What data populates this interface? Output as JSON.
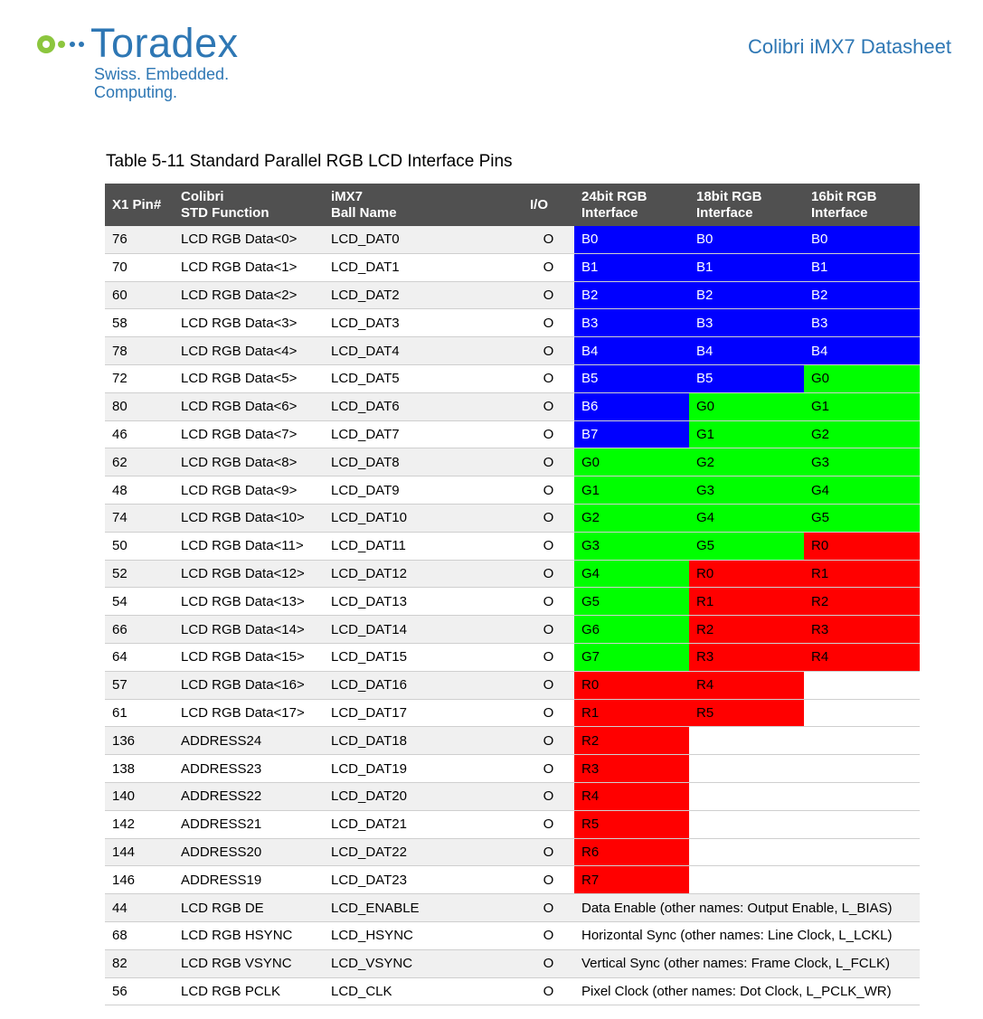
{
  "header": {
    "logo_text": "Toradex",
    "logo_tagline": "Swiss. Embedded. Computing.",
    "doc_title": "Colibri iMX7 Datasheet",
    "brand_color": "#2e77b4",
    "logo_dot_color": "#8cc63e"
  },
  "table": {
    "caption": "Table 5-11 Standard Parallel RGB LCD Interface Pins",
    "columns": [
      [
        "X1 Pin#"
      ],
      [
        "Colibri",
        "STD Function"
      ],
      [
        "iMX7",
        "Ball Name"
      ],
      [
        "I/O"
      ],
      [
        "24bit RGB",
        "Interface"
      ],
      [
        "18bit RGB",
        "Interface"
      ],
      [
        "16bit RGB",
        "Interface"
      ]
    ],
    "color_key": {
      "B": "#0000ff",
      "G": "#00ff00",
      "R": "#ff0000"
    },
    "rows": [
      {
        "pin": "76",
        "func": "LCD RGB Data<0>",
        "ball": "LCD_DAT0",
        "io": "O",
        "rgb24": "B0",
        "rgb18": "B0",
        "rgb16": "B0"
      },
      {
        "pin": "70",
        "func": "LCD RGB Data<1>",
        "ball": "LCD_DAT1",
        "io": "O",
        "rgb24": "B1",
        "rgb18": "B1",
        "rgb16": "B1"
      },
      {
        "pin": "60",
        "func": "LCD RGB Data<2>",
        "ball": "LCD_DAT2",
        "io": "O",
        "rgb24": "B2",
        "rgb18": "B2",
        "rgb16": "B2"
      },
      {
        "pin": "58",
        "func": "LCD RGB Data<3>",
        "ball": "LCD_DAT3",
        "io": "O",
        "rgb24": "B3",
        "rgb18": "B3",
        "rgb16": "B3"
      },
      {
        "pin": "78",
        "func": "LCD RGB Data<4>",
        "ball": "LCD_DAT4",
        "io": "O",
        "rgb24": "B4",
        "rgb18": "B4",
        "rgb16": "B4"
      },
      {
        "pin": "72",
        "func": "LCD RGB Data<5>",
        "ball": "LCD_DAT5",
        "io": "O",
        "rgb24": "B5",
        "rgb18": "B5",
        "rgb16": "G0"
      },
      {
        "pin": "80",
        "func": "LCD RGB Data<6>",
        "ball": "LCD_DAT6",
        "io": "O",
        "rgb24": "B6",
        "rgb18": "G0",
        "rgb16": "G1"
      },
      {
        "pin": "46",
        "func": "LCD RGB Data<7>",
        "ball": "LCD_DAT7",
        "io": "O",
        "rgb24": "B7",
        "rgb18": "G1",
        "rgb16": "G2"
      },
      {
        "pin": "62",
        "func": "LCD RGB Data<8>",
        "ball": "LCD_DAT8",
        "io": "O",
        "rgb24": "G0",
        "rgb18": "G2",
        "rgb16": "G3"
      },
      {
        "pin": "48",
        "func": "LCD RGB Data<9>",
        "ball": "LCD_DAT9",
        "io": "O",
        "rgb24": "G1",
        "rgb18": "G3",
        "rgb16": "G4"
      },
      {
        "pin": "74",
        "func": "LCD RGB Data<10>",
        "ball": "LCD_DAT10",
        "io": "O",
        "rgb24": "G2",
        "rgb18": "G4",
        "rgb16": "G5"
      },
      {
        "pin": "50",
        "func": "LCD RGB Data<11>",
        "ball": "LCD_DAT11",
        "io": "O",
        "rgb24": "G3",
        "rgb18": "G5",
        "rgb16": "R0"
      },
      {
        "pin": "52",
        "func": "LCD RGB Data<12>",
        "ball": "LCD_DAT12",
        "io": "O",
        "rgb24": "G4",
        "rgb18": "R0",
        "rgb16": "R1"
      },
      {
        "pin": "54",
        "func": "LCD RGB Data<13>",
        "ball": "LCD_DAT13",
        "io": "O",
        "rgb24": "G5",
        "rgb18": "R1",
        "rgb16": "R2"
      },
      {
        "pin": "66",
        "func": "LCD RGB Data<14>",
        "ball": "LCD_DAT14",
        "io": "O",
        "rgb24": "G6",
        "rgb18": "R2",
        "rgb16": "R3"
      },
      {
        "pin": "64",
        "func": "LCD RGB Data<15>",
        "ball": "LCD_DAT15",
        "io": "O",
        "rgb24": "G7",
        "rgb18": "R3",
        "rgb16": "R4"
      },
      {
        "pin": "57",
        "func": "LCD RGB Data<16>",
        "ball": "LCD_DAT16",
        "io": "O",
        "rgb24": "R0",
        "rgb18": "R4",
        "rgb16": ""
      },
      {
        "pin": "61",
        "func": "LCD RGB Data<17>",
        "ball": "LCD_DAT17",
        "io": "O",
        "rgb24": "R1",
        "rgb18": "R5",
        "rgb16": ""
      },
      {
        "pin": "136",
        "func": "ADDRESS24",
        "ball": "LCD_DAT18",
        "io": "O",
        "rgb24": "R2",
        "rgb18": "",
        "rgb16": ""
      },
      {
        "pin": "138",
        "func": "ADDRESS23",
        "ball": "LCD_DAT19",
        "io": "O",
        "rgb24": "R3",
        "rgb18": "",
        "rgb16": ""
      },
      {
        "pin": "140",
        "func": "ADDRESS22",
        "ball": "LCD_DAT20",
        "io": "O",
        "rgb24": "R4",
        "rgb18": "",
        "rgb16": ""
      },
      {
        "pin": "142",
        "func": "ADDRESS21",
        "ball": "LCD_DAT21",
        "io": "O",
        "rgb24": "R5",
        "rgb18": "",
        "rgb16": ""
      },
      {
        "pin": "144",
        "func": "ADDRESS20",
        "ball": "LCD_DAT22",
        "io": "O",
        "rgb24": "R6",
        "rgb18": "",
        "rgb16": ""
      },
      {
        "pin": "146",
        "func": "ADDRESS19",
        "ball": "LCD_DAT23",
        "io": "O",
        "rgb24": "R7",
        "rgb18": "",
        "rgb16": ""
      },
      {
        "pin": "44",
        "func": "LCD RGB DE",
        "ball": "LCD_ENABLE",
        "io": "O",
        "desc": "Data Enable (other names: Output Enable, L_BIAS)"
      },
      {
        "pin": "68",
        "func": "LCD RGB HSYNC",
        "ball": "LCD_HSYNC",
        "io": "O",
        "desc": "Horizontal Sync (other names: Line Clock, L_LCKL)"
      },
      {
        "pin": "82",
        "func": "LCD RGB VSYNC",
        "ball": "LCD_VSYNC",
        "io": "O",
        "desc": "Vertical Sync (other names: Frame Clock, L_FCLK)"
      },
      {
        "pin": "56",
        "func": "LCD RGB PCLK",
        "ball": "LCD_CLK",
        "io": "O",
        "desc": "Pixel Clock (other names: Dot Clock, L_PCLK_WR)"
      }
    ]
  }
}
